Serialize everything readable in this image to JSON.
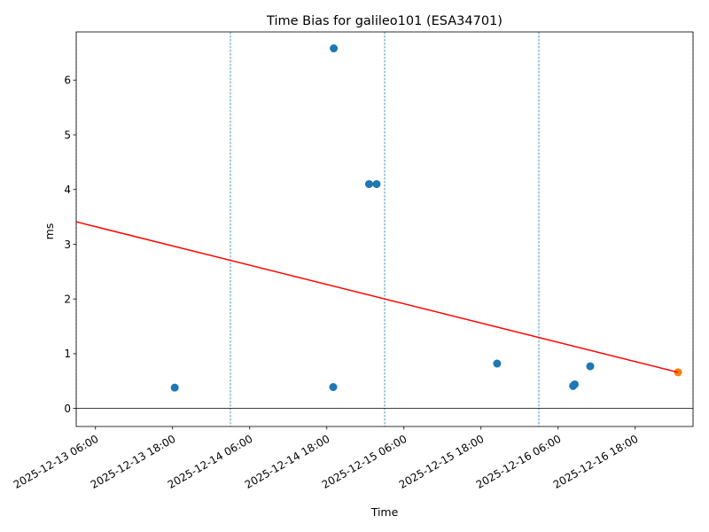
{
  "chart_data": {
    "type": "scatter",
    "title": "Time Bias for galileo101 (ESA34701)",
    "xlabel": "Time",
    "ylabel": "ms",
    "x_axis_type": "datetime",
    "xlim": [
      "2025-12-13 03:00",
      "2025-12-17 03:00"
    ],
    "ylim": [
      -0.33,
      6.88
    ],
    "x_ticks": [
      "2025-12-13 06:00",
      "2025-12-13 18:00",
      "2025-12-14 06:00",
      "2025-12-14 18:00",
      "2025-12-15 06:00",
      "2025-12-15 18:00",
      "2025-12-16 06:00",
      "2025-12-16 18:00"
    ],
    "y_ticks": [
      0,
      1,
      2,
      3,
      4,
      5,
      6
    ],
    "grid": false,
    "legend": "none",
    "series": [
      {
        "role": "measurements",
        "color": "#1f77b4",
        "x": [
          "2025-12-13 18:20",
          "2025-12-14 19:00",
          "2025-12-14 19:05",
          "2025-12-15 00:35",
          "2025-12-15 01:45",
          "2025-12-15 20:30",
          "2025-12-16 08:20",
          "2025-12-16 08:35",
          "2025-12-16 11:00"
        ],
        "y": [
          0.38,
          0.39,
          6.58,
          4.1,
          4.1,
          0.82,
          0.41,
          0.44,
          0.77
        ]
      },
      {
        "role": "latest",
        "color": "#ff7f0e",
        "x": [
          "2025-12-17 00:40"
        ],
        "y": [
          0.66
        ]
      },
      {
        "role": "trend",
        "type": "line",
        "color": "#ff0000",
        "x": [
          "2025-12-13 03:00",
          "2025-12-17 00:40"
        ],
        "y": [
          3.41,
          0.66
        ]
      }
    ],
    "reference_lines": {
      "horizontal": {
        "y": 0,
        "color": "#000000"
      },
      "vertical": {
        "style": "dashed",
        "color": "#1f77b4",
        "x": [
          "2025-12-13 03:00",
          "2025-12-14 03:00",
          "2025-12-15 03:00",
          "2025-12-16 03:00",
          "2025-12-17 03:00"
        ]
      }
    }
  }
}
